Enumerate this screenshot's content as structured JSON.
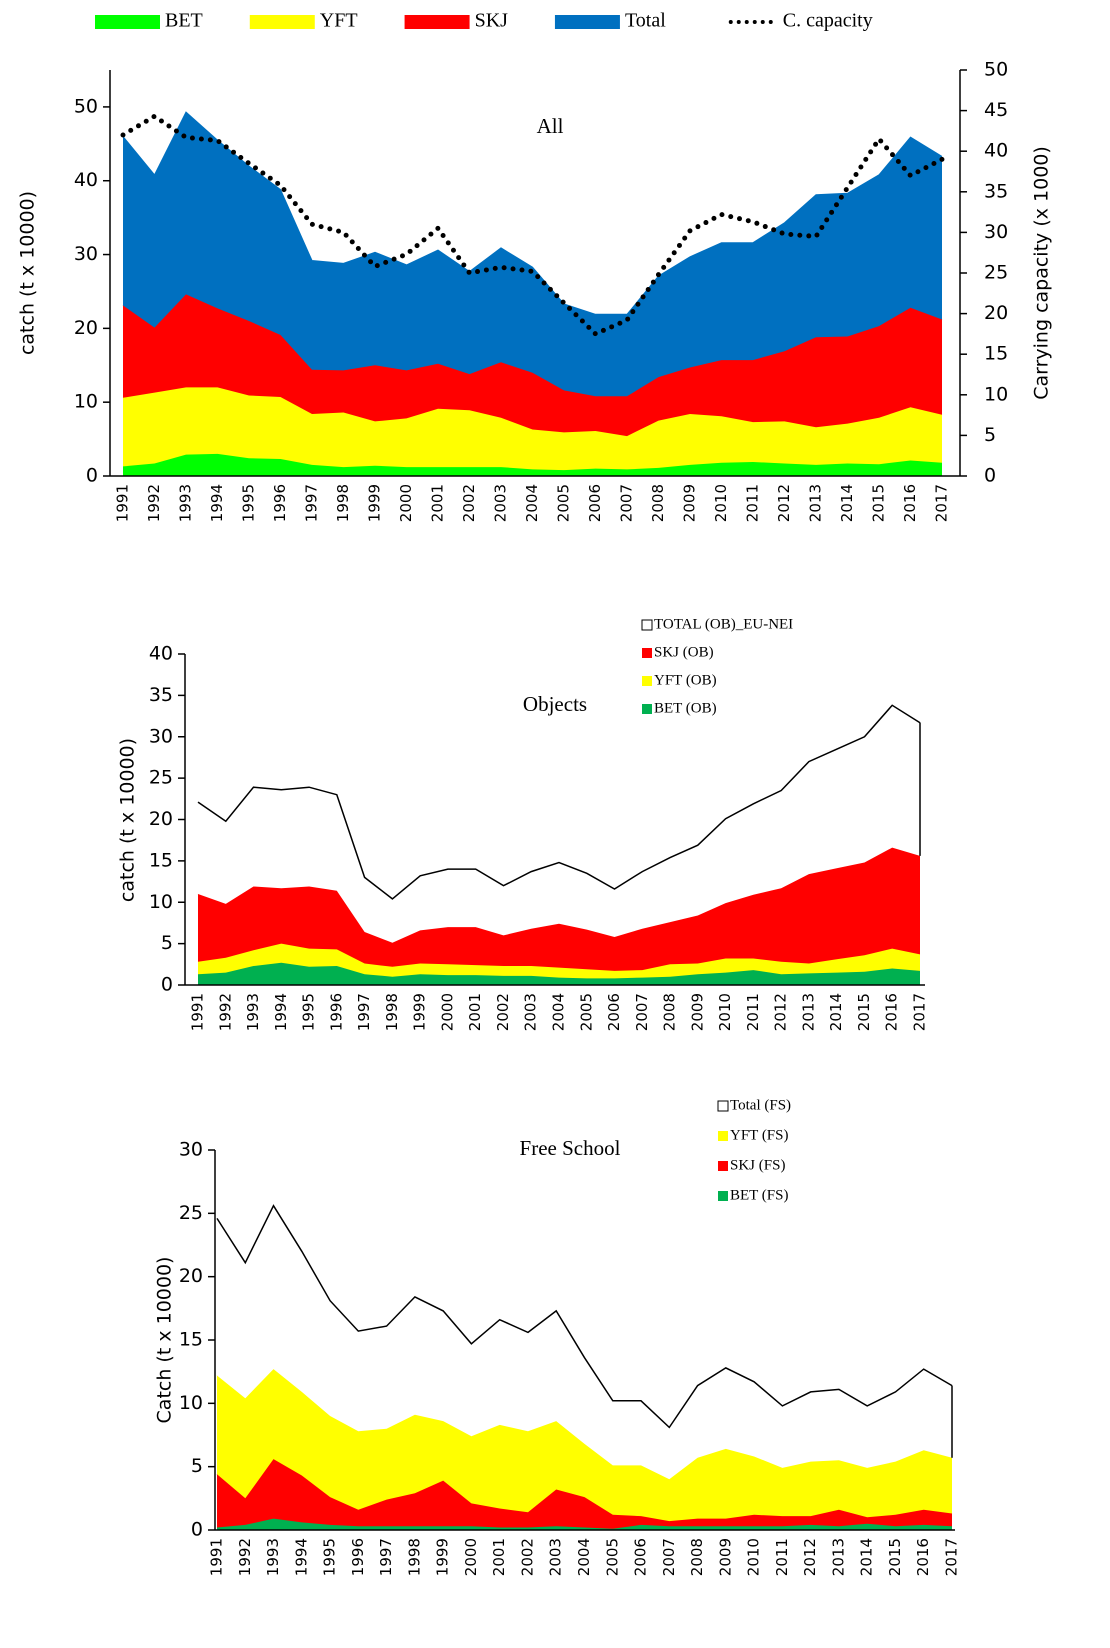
{
  "chart_data": [
    {
      "type": "area",
      "stacked": true,
      "title": "All",
      "ylabel": "catch (t x 10000)",
      "y2label": "Carrying capacity (x 1000)",
      "categories": [
        "1991",
        "1992",
        "1993",
        "1994",
        "1995",
        "1996",
        "1997",
        "1998",
        "1999",
        "2000",
        "2001",
        "2002",
        "2003",
        "2004",
        "2005",
        "2006",
        "2007",
        "2008",
        "2009",
        "2010",
        "2011",
        "2012",
        "2013",
        "2014",
        "2015",
        "2016",
        "2017"
      ],
      "series": [
        {
          "name": "BET",
          "color": "#00ff00",
          "values": [
            1.3,
            1.7,
            2.9,
            3.0,
            2.4,
            2.3,
            1.5,
            1.2,
            1.4,
            1.2,
            1.2,
            1.2,
            1.2,
            0.9,
            0.8,
            1.0,
            0.9,
            1.1,
            1.5,
            1.8,
            1.9,
            1.7,
            1.5,
            1.7,
            1.6,
            2.1,
            1.8
          ]
        },
        {
          "name": "YFT",
          "color": "#ffff00",
          "values": [
            9.3,
            9.6,
            9.1,
            9.0,
            8.5,
            8.4,
            6.9,
            7.4,
            6.0,
            6.6,
            7.9,
            7.7,
            6.7,
            5.4,
            5.1,
            5.1,
            4.5,
            6.4,
            6.9,
            6.3,
            5.4,
            5.7,
            5.1,
            5.4,
            6.3,
            7.2,
            6.5
          ]
        },
        {
          "name": "SKJ",
          "color": "#ff0000",
          "values": [
            12.5,
            8.8,
            12.6,
            10.7,
            10.1,
            8.4,
            6.0,
            5.7,
            7.6,
            6.5,
            6.1,
            4.9,
            7.5,
            7.7,
            5.7,
            4.7,
            5.4,
            5.9,
            6.3,
            7.6,
            8.4,
            9.5,
            12.2,
            11.8,
            12.4,
            13.5,
            12.9
          ]
        },
        {
          "name": "Total",
          "color": "#0070c0",
          "values": [
            22.9,
            20.7,
            24.7,
            22.8,
            21.0,
            19.7,
            14.8,
            14.5,
            15.3,
            14.3,
            15.4,
            13.9,
            15.5,
            14.3,
            11.7,
            11.1,
            11.1,
            13.7,
            15.0,
            15.9,
            15.9,
            17.4,
            19.3,
            19.4,
            20.5,
            23.1,
            22.1
          ]
        },
        {
          "name": "C. capacity",
          "type": "line",
          "axis": "y2",
          "color": "#000000",
          "linestyle": "dotted",
          "values": [
            42,
            44.3,
            41.7,
            41.3,
            38.5,
            35.8,
            31,
            30,
            25.8,
            27.3,
            30.5,
            25,
            25.7,
            25.2,
            21.3,
            17.5,
            19.2,
            24.8,
            30.2,
            32.2,
            31.3,
            29.8,
            29.5,
            35.5,
            41.5,
            37,
            39
          ]
        }
      ],
      "ylim": [
        0,
        55
      ],
      "yticks": [
        0,
        10,
        20,
        30,
        40,
        50
      ],
      "y2lim": [
        0,
        50
      ],
      "y2ticks": [
        0,
        5,
        10,
        15,
        20,
        25,
        30,
        35,
        40,
        45,
        50
      ],
      "legend": "top"
    },
    {
      "type": "area",
      "stacked": true,
      "title": "Objects",
      "ylabel": "catch (t x 10000)",
      "categories": [
        "1991",
        "1992",
        "1993",
        "1994",
        "1995",
        "1996",
        "1997",
        "1998",
        "1999",
        "2000",
        "2001",
        "2002",
        "2003",
        "2004",
        "2005",
        "2006",
        "2007",
        "2008",
        "2009",
        "2010",
        "2011",
        "2012",
        "2013",
        "2014",
        "2015",
        "2016",
        "2017"
      ],
      "series": [
        {
          "name": "BET (OB)",
          "color": "#00b050",
          "values": [
            1.3,
            1.5,
            2.3,
            2.7,
            2.2,
            2.3,
            1.3,
            1.0,
            1.3,
            1.2,
            1.2,
            1.1,
            1.1,
            0.9,
            0.8,
            0.8,
            0.9,
            1.0,
            1.3,
            1.5,
            1.8,
            1.3,
            1.4,
            1.5,
            1.6,
            2.0,
            1.7
          ]
        },
        {
          "name": "YFT (OB)",
          "color": "#ffff00",
          "values": [
            1.5,
            1.8,
            1.9,
            2.3,
            2.2,
            2.0,
            1.3,
            1.2,
            1.3,
            1.3,
            1.2,
            1.2,
            1.2,
            1.2,
            1.1,
            0.9,
            0.9,
            1.5,
            1.3,
            1.7,
            1.4,
            1.5,
            1.2,
            1.6,
            2.0,
            2.4,
            2.0
          ]
        },
        {
          "name": "SKJ (OB)",
          "color": "#ff0000",
          "values": [
            8.2,
            6.5,
            7.7,
            6.7,
            7.5,
            7.1,
            3.8,
            2.9,
            4.0,
            4.5,
            4.6,
            3.7,
            4.5,
            5.3,
            4.8,
            4.1,
            5.0,
            5.1,
            5.8,
            6.7,
            7.7,
            8.9,
            10.8,
            11.0,
            11.2,
            12.2,
            11.9
          ]
        },
        {
          "name": "TOTAL (OB)_EU-NEI",
          "color": "#ffffff",
          "edgecolor": "#000000",
          "values": [
            11.1,
            10.0,
            12.0,
            11.9,
            12.0,
            11.6,
            6.6,
            5.3,
            6.6,
            7.0,
            7.0,
            6.0,
            6.9,
            7.4,
            6.8,
            5.8,
            6.9,
            7.8,
            8.5,
            10.2,
            11.0,
            11.8,
            13.6,
            14.4,
            15.2,
            17.2,
            16.1
          ]
        }
      ],
      "ylim": [
        0,
        40
      ],
      "yticks": [
        0,
        5,
        10,
        15,
        20,
        25,
        30,
        35,
        40
      ],
      "legend": "upper right",
      "legend_order": "reverse"
    },
    {
      "type": "area",
      "stacked": true,
      "title": "Free School",
      "ylabel": "Catch (t x 10000)",
      "categories": [
        "1991",
        "1992",
        "1993",
        "1994",
        "1995",
        "1996",
        "1997",
        "1998",
        "1999",
        "2000",
        "2001",
        "2002",
        "2003",
        "2004",
        "2005",
        "2006",
        "2007",
        "2008",
        "2009",
        "2010",
        "2011",
        "2012",
        "2013",
        "2014",
        "2015",
        "2016",
        "2017"
      ],
      "series": [
        {
          "name": "BET (FS)",
          "color": "#00b050",
          "values": [
            0.2,
            0.4,
            0.9,
            0.6,
            0.4,
            0.3,
            0.3,
            0.3,
            0.3,
            0.3,
            0.2,
            0.2,
            0.3,
            0.2,
            0.1,
            0.4,
            0.3,
            0.3,
            0.3,
            0.3,
            0.3,
            0.4,
            0.3,
            0.5,
            0.3,
            0.4,
            0.3
          ]
        },
        {
          "name": "SKJ (FS)",
          "color": "#ff0000",
          "values": [
            4.2,
            2.1,
            4.7,
            3.7,
            2.2,
            1.3,
            2.1,
            2.6,
            3.6,
            1.8,
            1.5,
            1.2,
            2.9,
            2.4,
            1.1,
            0.7,
            0.4,
            0.6,
            0.6,
            0.9,
            0.8,
            0.7,
            1.3,
            0.5,
            0.9,
            1.2,
            1.0
          ]
        },
        {
          "name": "YFT (FS)",
          "color": "#ffff00",
          "values": [
            7.8,
            7.9,
            7.1,
            6.6,
            6.4,
            6.2,
            5.6,
            6.2,
            4.7,
            5.3,
            6.6,
            6.4,
            5.4,
            4.2,
            3.9,
            4.0,
            3.3,
            4.8,
            5.5,
            4.6,
            3.8,
            4.3,
            3.9,
            3.9,
            4.2,
            4.7,
            4.4
          ]
        },
        {
          "name": "Total (FS)",
          "color": "#ffffff",
          "edgecolor": "#000000",
          "values": [
            12.4,
            10.7,
            12.9,
            11.1,
            9.1,
            7.9,
            8.1,
            9.3,
            8.7,
            7.3,
            8.3,
            7.8,
            8.7,
            6.8,
            5.1,
            5.1,
            4.1,
            5.7,
            6.4,
            5.9,
            4.9,
            5.5,
            5.6,
            4.9,
            5.5,
            6.4,
            5.7
          ]
        }
      ],
      "ylim": [
        0,
        30
      ],
      "yticks": [
        0,
        5,
        10,
        15,
        20,
        25,
        30
      ],
      "legend": "upper right",
      "legend_order": "reverse"
    }
  ]
}
